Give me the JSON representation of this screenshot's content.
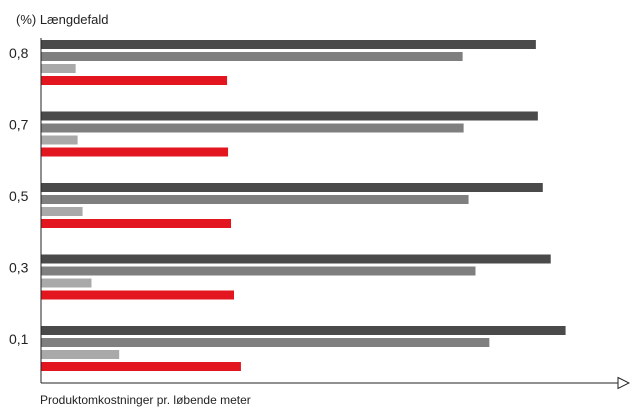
{
  "chart_data": {
    "type": "bar",
    "orientation": "horizontal",
    "ylabel": "(%) Længdefald",
    "xlabel": "Produktomkostninger pr. løbende meter",
    "categories": [
      "0,8",
      "0,7",
      "0,5",
      "0,3",
      "0,1"
    ],
    "series": [
      {
        "color": "#4a4a4a",
        "values": [
          500,
          502,
          507,
          515,
          530
        ]
      },
      {
        "color": "#7f7f7f",
        "values": [
          426,
          427,
          432,
          439,
          453
        ]
      },
      {
        "color": "#a9a9a9",
        "values": [
          35,
          37,
          42,
          51,
          79
        ]
      },
      {
        "color": "#e3151e",
        "values": [
          188,
          189,
          192,
          195,
          202
        ]
      }
    ],
    "xlim": [
      0,
      585
    ],
    "grid": false,
    "legend": "none",
    "x_axis_arrow": true
  }
}
